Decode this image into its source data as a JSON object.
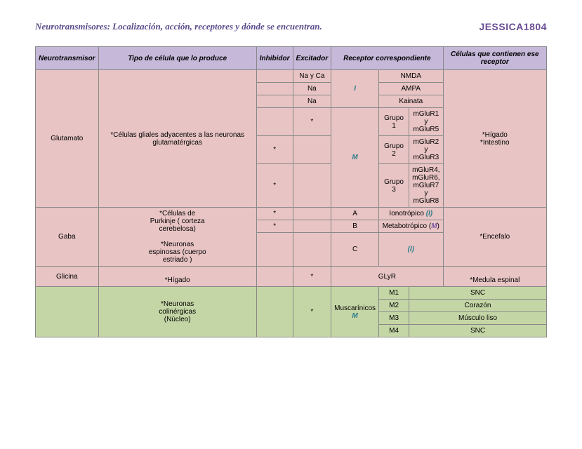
{
  "header": {
    "title": "Neurotransmisores: Localización, acción, receptores y dónde se encuentran.",
    "author": "JESSICA1804"
  },
  "columns": {
    "c1": "Neurotransmisor",
    "c2": "Tipo de célula que lo produce",
    "c3": "Inhibidor",
    "c4": "Excitador",
    "c5": "Receptor correspondiente",
    "c6": "Células que contienen ese receptor"
  },
  "glutamato": {
    "name": "Glutamato",
    "cell": "*Células gliales adyacentes a las neuronas glutamatérgicas",
    "exc1": "Na y Ca",
    "exc2": "Na",
    "exc3": "Na",
    "star": "*",
    "i": "I",
    "m": "M",
    "r1": "NMDA",
    "r2": "AMPA",
    "r3": "Kainata",
    "g1": "Grupo 1",
    "g1r": "mGluR1 y mGluR5",
    "g2": "Grupo 2",
    "g2r": "mGluR2 y mGluR3",
    "g3": "Grupo 3",
    "g3r": "mGluR4, mGluR6, mGluR7 y mGluR8",
    "loc": "*Hígado *Intestino"
  },
  "gaba": {
    "name": "Gaba",
    "cell": "*Células de Purkinje ( corteza cerebelosa)\n\n*Neuronas espinosas (cuerpo estriado )",
    "star": "*",
    "a": "A",
    "b": "B",
    "c": "C",
    "ra": "Ionotrópico (I)",
    "rb": "Metabotrópico (M)",
    "rc": "(I)",
    "loc": "*Encefalo"
  },
  "glicina": {
    "name": "Glicina",
    "cell": "*Hígado",
    "star": "*",
    "r": "GLyR",
    "loc": "*Medula espinal"
  },
  "musc": {
    "cell": "*Neuronas colinérgicas (Núcleo)",
    "star": "*",
    "rtype": "Muscarínicos",
    "m": "M",
    "m1": "M1",
    "m1loc": "SNC",
    "m2": "M2",
    "m2loc": "Corazón",
    "m3": "M3",
    "m3loc": "Músculo liso",
    "m4": "M4",
    "m4loc": "SNC"
  }
}
